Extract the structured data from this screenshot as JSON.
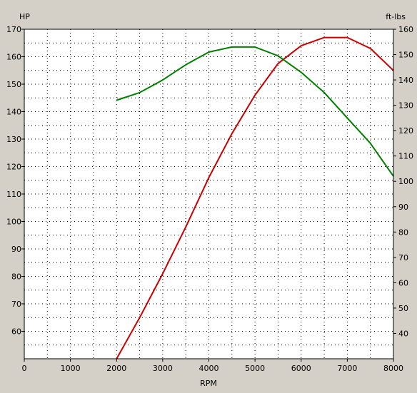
{
  "chart_data": {
    "type": "line",
    "xlabel": "RPM",
    "x_range": [
      0,
      8000
    ],
    "x_ticks": [
      0,
      1000,
      2000,
      3000,
      4000,
      5000,
      6000,
      7000,
      8000
    ],
    "left_axis": {
      "label": "HP",
      "range": [
        50,
        170
      ],
      "ticks": [
        60,
        70,
        80,
        90,
        100,
        110,
        120,
        130,
        140,
        150,
        160,
        170
      ]
    },
    "right_axis": {
      "label": "ft-lbs",
      "range": [
        30,
        160
      ],
      "ticks": [
        40,
        50,
        60,
        70,
        80,
        90,
        100,
        110,
        120,
        130,
        140,
        150,
        160
      ]
    },
    "grid": "dotted",
    "series": [
      {
        "color": "#cc0000",
        "axis": "left",
        "points": [
          [
            2000,
            50
          ],
          [
            2500,
            65
          ],
          [
            3000,
            81
          ],
          [
            3500,
            98
          ],
          [
            4000,
            116
          ],
          [
            4500,
            132
          ],
          [
            5000,
            146
          ],
          [
            5500,
            157.5
          ],
          [
            6000,
            164
          ],
          [
            6500,
            167
          ],
          [
            7000,
            167
          ],
          [
            7500,
            163
          ],
          [
            8000,
            155
          ]
        ]
      },
      {
        "color": "#008000",
        "axis": "right",
        "points": [
          [
            2000,
            132
          ],
          [
            2500,
            135
          ],
          [
            3000,
            140
          ],
          [
            3500,
            146
          ],
          [
            4000,
            151
          ],
          [
            4500,
            153
          ],
          [
            5000,
            153
          ],
          [
            5500,
            149.5
          ],
          [
            6000,
            143
          ],
          [
            6500,
            135
          ],
          [
            7000,
            125
          ],
          [
            7500,
            115
          ],
          [
            8000,
            102
          ]
        ]
      }
    ]
  }
}
